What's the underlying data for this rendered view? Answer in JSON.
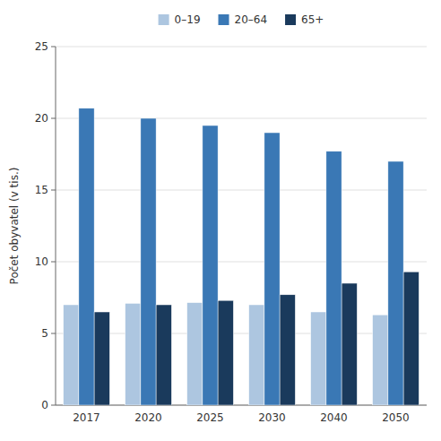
{
  "chart_data": {
    "type": "bar",
    "categories": [
      "2017",
      "2020",
      "2025",
      "2030",
      "2040",
      "2050"
    ],
    "series": [
      {
        "name": "0–19",
        "color": "#adc6e0",
        "values": [
          7.0,
          7.1,
          7.15,
          7.0,
          6.5,
          6.3
        ]
      },
      {
        "name": "20–64",
        "color": "#3a78b5",
        "values": [
          20.7,
          20.0,
          19.5,
          19.0,
          17.7,
          17.0
        ]
      },
      {
        "name": "65+",
        "color": "#1a3a5c",
        "values": [
          6.5,
          7.0,
          7.3,
          7.7,
          8.5,
          9.3
        ]
      }
    ],
    "ylabel": "Počet obyvatel (v tis.)",
    "ylim": [
      0,
      25
    ],
    "yticks": [
      0,
      5,
      10,
      15,
      20,
      25
    ],
    "grid": true,
    "legend": "top"
  }
}
